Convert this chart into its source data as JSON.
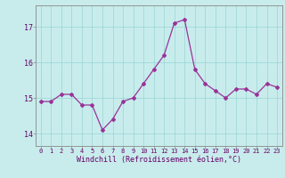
{
  "x": [
    0,
    1,
    2,
    3,
    4,
    5,
    6,
    7,
    8,
    9,
    10,
    11,
    12,
    13,
    14,
    15,
    16,
    17,
    18,
    19,
    20,
    21,
    22,
    23
  ],
  "y": [
    14.9,
    14.9,
    15.1,
    15.1,
    14.8,
    14.8,
    14.1,
    14.4,
    14.9,
    15.0,
    15.4,
    15.8,
    16.2,
    17.1,
    17.2,
    15.8,
    15.4,
    15.2,
    15.0,
    15.25,
    15.25,
    15.1,
    15.4,
    15.3
  ],
  "line_color": "#993399",
  "marker": "D",
  "markersize": 2.0,
  "linewidth": 0.9,
  "bg_color": "#c8ecec",
  "grid_color": "#a0d8d8",
  "xlabel": "Windchill (Refroidissement éolien,°C)",
  "xlabel_color": "#660066",
  "tick_color": "#660066",
  "axis_color": "#888888",
  "xlim": [
    -0.5,
    23.5
  ],
  "ylim": [
    13.65,
    17.6
  ],
  "yticks": [
    14,
    15,
    16,
    17
  ],
  "xticks": [
    0,
    1,
    2,
    3,
    4,
    5,
    6,
    7,
    8,
    9,
    10,
    11,
    12,
    13,
    14,
    15,
    16,
    17,
    18,
    19,
    20,
    21,
    22,
    23
  ]
}
